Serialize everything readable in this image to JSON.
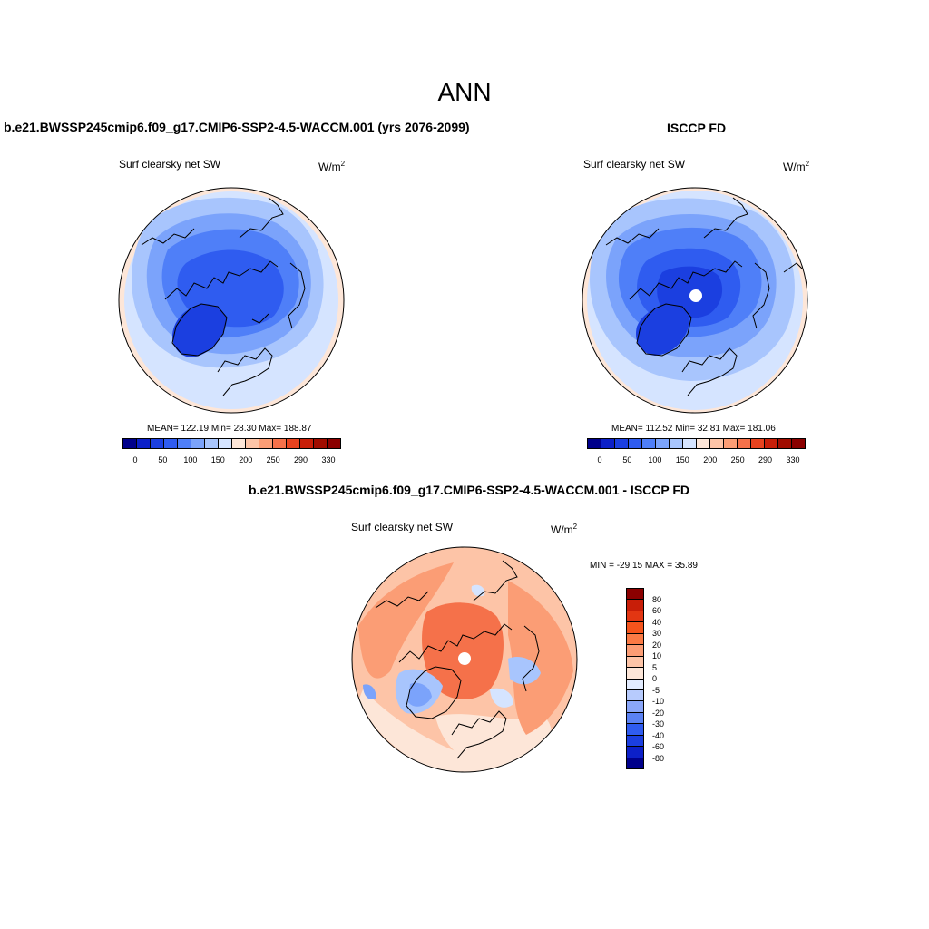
{
  "figure_title": "ANN",
  "palette_full": [
    "#00008b",
    "#0c20c8",
    "#1b3fe0",
    "#2f5cf0",
    "#4f7ff8",
    "#7ba3fb",
    "#a8c5fd",
    "#d5e4ff",
    "#fde6d8",
    "#fdc4a7",
    "#fb9d75",
    "#f5714a",
    "#e8431f",
    "#c81e08",
    "#a00c00",
    "#8b0000"
  ],
  "palette_diff": [
    "#8b0000",
    "#c81e08",
    "#e33612",
    "#f5541c",
    "#fa7a45",
    "#fb9d75",
    "#fdc4a7",
    "#fde6d8",
    "#e3ecff",
    "#b7cbfd",
    "#8aa6f9",
    "#5b82f4",
    "#2f5cf0",
    "#1b3fe0",
    "#0c20c8",
    "#00008b"
  ],
  "panels": {
    "left": {
      "title": "b.e21.BWSSP245cmip6.f09_g17.CMIP6-SSP2-4.5-WACCM.001 (yrs 2076-2099)",
      "variable": "Surf clearsky net SW",
      "units": "W/m",
      "units_exp": "2",
      "stats": "MEAN= 122.19  Min=  28.30  Max= 188.87",
      "colorbar_labels": [
        "0",
        "50",
        "100",
        "150",
        "200",
        "250",
        "290",
        "330"
      ]
    },
    "right": {
      "title": "ISCCP FD",
      "variable": "Surf clearsky net SW",
      "units": "W/m",
      "units_exp": "2",
      "stats": "MEAN= 112.52  Min=  32.81  Max= 181.06",
      "colorbar_labels": [
        "0",
        "50",
        "100",
        "150",
        "200",
        "250",
        "290",
        "330"
      ]
    },
    "diff": {
      "title": "b.e21.BWSSP245cmip6.f09_g17.CMIP6-SSP2-4.5-WACCM.001 - ISCCP FD",
      "variable": "Surf clearsky net SW",
      "units": "W/m",
      "units_exp": "2",
      "stats": "MIN = -29.15 MAX =  35.89",
      "colorbar_labels": [
        "80",
        "60",
        "40",
        "30",
        "20",
        "10",
        "5",
        "0",
        "-5",
        "-10",
        "-20",
        "-30",
        "-40",
        "-60",
        "-80"
      ]
    }
  }
}
